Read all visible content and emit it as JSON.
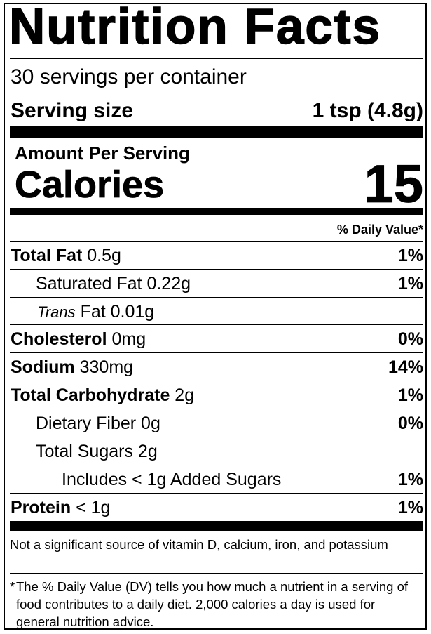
{
  "label": {
    "title": "Nutrition Facts",
    "servings_per_container": "30 servings per container",
    "serving_size_label": "Serving size",
    "serving_size_value": "1 tsp (4.8g)",
    "amount_per_serving": "Amount Per Serving",
    "calories_label": "Calories",
    "calories_value": "15",
    "daily_value_header": "% Daily Value*",
    "nutrients": [
      {
        "name": "Total Fat",
        "amount": "0.5g",
        "dv": "1%"
      },
      {
        "name": "Saturated Fat",
        "amount": "0.22g",
        "dv": "1%"
      },
      {
        "name": "Trans",
        "name_suffix": "Fat",
        "amount": "0.01g",
        "dv": ""
      },
      {
        "name": "Cholesterol",
        "amount": "0mg",
        "dv": "0%"
      },
      {
        "name": "Sodium",
        "amount": "330mg",
        "dv": "14%"
      },
      {
        "name": "Total Carbohydrate",
        "amount": "2g",
        "dv": "1%"
      },
      {
        "name": "Dietary Fiber",
        "amount": "0g",
        "dv": "0%"
      },
      {
        "name": "Total Sugars",
        "amount": "2g",
        "dv": ""
      },
      {
        "name": "Includes < 1g Added Sugars",
        "amount": "",
        "dv": "1%"
      },
      {
        "name": "Protein",
        "amount": "< 1g",
        "dv": "1%"
      }
    ],
    "footnote_vitamins": "Not a significant source of vitamin D, calcium, iron, and potassium",
    "footnote_star": "*",
    "footnote_dv": "The % Daily Value (DV) tells you how much a nutrient in a serving of food contributes to a daily diet. 2,000 calories a day is used for general nutrition advice."
  }
}
